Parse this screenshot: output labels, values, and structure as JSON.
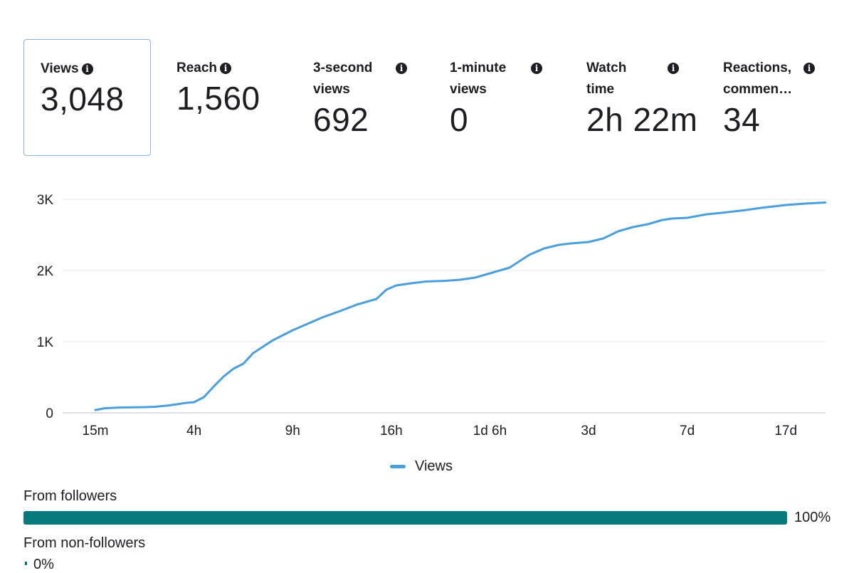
{
  "metrics": [
    {
      "label": "Views",
      "value": "3,048",
      "selected": true
    },
    {
      "label": "Reach",
      "value": "1,560",
      "selected": false
    },
    {
      "label_line1": "3-second",
      "label_line2": "views",
      "value": "692",
      "selected": false
    },
    {
      "label_line1": "1-minute",
      "label_line2": "views",
      "value": "0",
      "selected": false
    },
    {
      "label_line1": "Watch",
      "label_line2": "time",
      "value": "2h 22m",
      "selected": false
    },
    {
      "label_line1": "Reactions,",
      "label_line2": "commen…",
      "value": "34",
      "selected": false
    }
  ],
  "info_glyph": "i",
  "chart_data": {
    "type": "line",
    "title": "",
    "xlabel": "",
    "ylabel": "",
    "ylim": [
      0,
      3000
    ],
    "yticks": [
      0,
      1000,
      2000,
      3000
    ],
    "ytick_labels": [
      "0",
      "1K",
      "2K",
      "3K"
    ],
    "xtick_labels": [
      "15m",
      "4h",
      "9h",
      "16h",
      "1d 6h",
      "3d",
      "7d",
      "17d"
    ],
    "x_index_range": [
      -0.05,
      7.4
    ],
    "legend": "bottom-center",
    "grid": true,
    "series": [
      {
        "name": "Views",
        "color": "#4a9fdd",
        "points": [
          [
            0,
            40
          ],
          [
            0.1,
            65
          ],
          [
            0.25,
            75
          ],
          [
            0.5,
            80
          ],
          [
            0.6,
            85
          ],
          [
            0.75,
            105
          ],
          [
            0.85,
            125
          ],
          [
            0.92,
            140
          ],
          [
            1.0,
            150
          ],
          [
            1.1,
            220
          ],
          [
            1.2,
            370
          ],
          [
            1.3,
            510
          ],
          [
            1.4,
            620
          ],
          [
            1.5,
            690
          ],
          [
            1.6,
            840
          ],
          [
            1.8,
            1020
          ],
          [
            2.0,
            1160
          ],
          [
            2.15,
            1250
          ],
          [
            2.3,
            1340
          ],
          [
            2.5,
            1440
          ],
          [
            2.65,
            1520
          ],
          [
            2.85,
            1600
          ],
          [
            2.95,
            1730
          ],
          [
            3.05,
            1790
          ],
          [
            3.2,
            1820
          ],
          [
            3.35,
            1845
          ],
          [
            3.55,
            1855
          ],
          [
            3.7,
            1870
          ],
          [
            3.85,
            1900
          ],
          [
            4.05,
            1980
          ],
          [
            4.2,
            2040
          ],
          [
            4.4,
            2220
          ],
          [
            4.55,
            2310
          ],
          [
            4.7,
            2360
          ],
          [
            4.82,
            2380
          ],
          [
            5.0,
            2400
          ],
          [
            5.15,
            2450
          ],
          [
            5.3,
            2550
          ],
          [
            5.45,
            2610
          ],
          [
            5.6,
            2650
          ],
          [
            5.75,
            2710
          ],
          [
            5.85,
            2730
          ],
          [
            6.0,
            2740
          ],
          [
            6.2,
            2790
          ],
          [
            6.35,
            2810
          ],
          [
            6.6,
            2850
          ],
          [
            6.75,
            2880
          ],
          [
            7.0,
            2920
          ],
          [
            7.2,
            2940
          ],
          [
            7.4,
            2955
          ]
        ]
      }
    ]
  },
  "legend_label": "Views",
  "audience": {
    "followers_label": "From followers",
    "followers_pct": 100,
    "followers_pct_text": "100%",
    "non_followers_label": "From non-followers",
    "non_followers_pct": 0,
    "non_followers_pct_text": "0%"
  }
}
